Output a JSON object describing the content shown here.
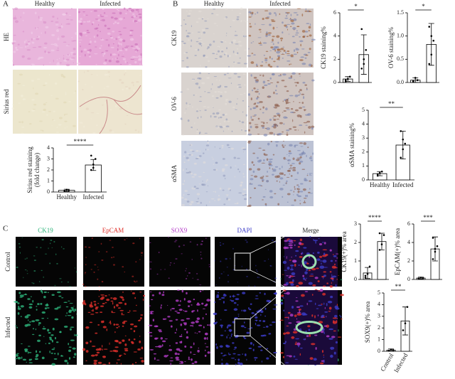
{
  "panel_a": {
    "label": "A",
    "columns": [
      "Healthy",
      "Infected"
    ],
    "rows": [
      "HE",
      "Sirius red"
    ]
  },
  "panel_b": {
    "label": "B",
    "columns": [
      "Healthy",
      "Infected"
    ],
    "rows": [
      "CK19",
      "OV-6",
      "αSMA"
    ]
  },
  "panel_c": {
    "label": "C",
    "columns": [
      "CK19",
      "EpCAM",
      "SOX9",
      "DAPI",
      "Merge"
    ],
    "column_colors": [
      "#2db37a",
      "#e0302a",
      "#b43cc8",
      "#3c3cc8",
      "#222222"
    ],
    "rows": [
      "Control",
      "Infected"
    ]
  },
  "chart_data": [
    {
      "type": "bar",
      "y_label": [
        "Sirius red staining",
        "(fold change)"
      ],
      "categories": [
        "Healthy",
        "Infected"
      ],
      "values": [
        0.15,
        2.45
      ],
      "errors": [
        0.1,
        0.5
      ],
      "points": [
        [
          0.1,
          0.2,
          0.15,
          0.1,
          0.2
        ],
        [
          2.0,
          2.5,
          3.0,
          3.3,
          2.2
        ]
      ],
      "ylim": [
        0,
        4
      ],
      "yticks": [
        0,
        1,
        2,
        3,
        4
      ],
      "significance": "****",
      "color": "#ffffff"
    },
    {
      "type": "bar",
      "y_label": [
        "CK19 staining%"
      ],
      "categories": [
        null,
        null
      ],
      "values": [
        0.3,
        2.4
      ],
      "errors": [
        0.2,
        1.7
      ],
      "points": [
        [
          0.1,
          0.3,
          0.5,
          0.2
        ],
        [
          1.2,
          2.0,
          2.8,
          4.6,
          1.6
        ]
      ],
      "ylim": [
        0,
        6
      ],
      "yticks": [
        0,
        2,
        4,
        6
      ],
      "significance": "*",
      "color": "#ffffff"
    },
    {
      "type": "bar",
      "y_label": [
        "OV-6 staining%"
      ],
      "categories": [
        null,
        null
      ],
      "values": [
        0.05,
        0.82
      ],
      "errors": [
        0.05,
        0.45
      ],
      "points": [
        [
          0.02,
          0.1,
          0.05,
          0.03
        ],
        [
          0.4,
          0.6,
          0.9,
          1.2,
          1.0
        ]
      ],
      "ylim": [
        0,
        1.5
      ],
      "yticks": [
        {
          "value": 0,
          "label": "0.0"
        },
        {
          "value": 0.5,
          "label": "0.5"
        },
        {
          "value": 1,
          "label": "1.0"
        },
        {
          "value": 1.5,
          "label": "1.5"
        }
      ],
      "significance": "*",
      "color": "#ffffff"
    },
    {
      "type": "bar",
      "y_label": [
        "αSMA staining%"
      ],
      "categories": [
        "Healthy",
        "Infected"
      ],
      "values": [
        0.45,
        2.5
      ],
      "errors": [
        0.15,
        1.0
      ],
      "points": [
        [
          0.3,
          0.5,
          0.6,
          0.4
        ],
        [
          1.6,
          2.2,
          2.6,
          3.5,
          2.9
        ]
      ],
      "ylim": [
        0,
        5
      ],
      "yticks": [
        0,
        1,
        2,
        3,
        4,
        5
      ],
      "significance": "**",
      "color": "#ffffff"
    },
    {
      "type": "bar",
      "y_label": [
        "CK19(+)% area"
      ],
      "categories": [
        null,
        null
      ],
      "values": [
        0.35,
        2.05
      ],
      "errors": [
        0.3,
        0.45
      ],
      "points": [
        [
          0.1,
          0.3,
          0.7,
          0.2
        ],
        [
          1.6,
          1.9,
          2.4,
          2.5
        ]
      ],
      "ylim": [
        0,
        3
      ],
      "yticks": [
        0,
        1,
        2,
        3
      ],
      "significance": "****",
      "color": "#ffffff"
    },
    {
      "type": "bar",
      "y_label": [
        "EpCAM(+)% area"
      ],
      "categories": [
        null,
        null
      ],
      "values": [
        0.15,
        3.3
      ],
      "errors": [
        0.1,
        1.3
      ],
      "points": [
        [
          0.1,
          0.2,
          0.15,
          0.1
        ],
        [
          2.2,
          3.0,
          3.6,
          4.5,
          3.3
        ]
      ],
      "ylim": [
        0,
        6
      ],
      "yticks": [
        0,
        2,
        4,
        6
      ],
      "significance": "***",
      "color": "#ffffff"
    },
    {
      "type": "bar",
      "y_label": [
        "SOX9(+)% area"
      ],
      "categories": [
        "Control",
        "Infected"
      ],
      "values": [
        0.1,
        2.6
      ],
      "errors": [
        0.1,
        1.2
      ],
      "points": [
        [
          0.05,
          0.15,
          0.1
        ],
        [
          1.8,
          2.4,
          3.8
        ]
      ],
      "ylim": [
        0,
        5
      ],
      "yticks": [
        0,
        1,
        2,
        3,
        4,
        5
      ],
      "significance": "**",
      "color": "#ffffff",
      "rotate_labels": true
    }
  ]
}
